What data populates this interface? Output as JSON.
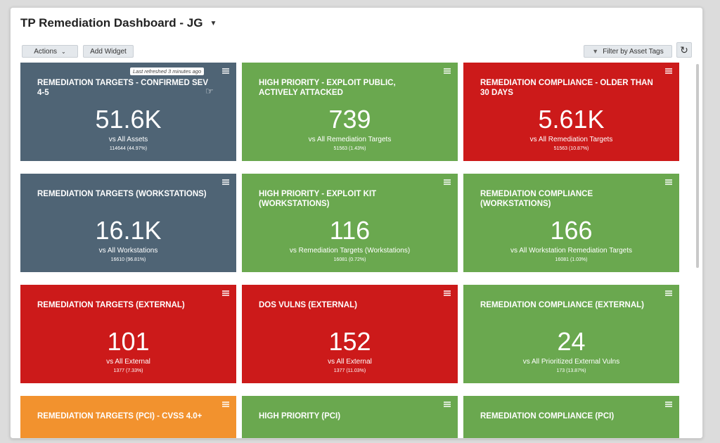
{
  "header": {
    "title": "TP Remediation Dashboard - JG",
    "actions_label": "Actions",
    "add_widget_label": "Add Widget",
    "filter_label": "Filter by Asset Tags",
    "refreshed_note": "Last refreshed 3 minutes ago"
  },
  "colors": {
    "slate": "#4f6475",
    "green": "#6aa84f",
    "red": "#cc1a1a",
    "orange": "#f2922e"
  },
  "tiles": [
    {
      "title": "REMEDIATION TARGETS - CONFIRMED SEV 4-5",
      "value": "51.6K",
      "vs": "vs  All Assets",
      "sub": "114644 (44.97%)",
      "color": "slate"
    },
    {
      "title": "HIGH PRIORITY - EXPLOIT PUBLIC, ACTIVELY ATTACKED",
      "value": "739",
      "vs": "vs  All Remediation Targets",
      "sub": "51563 (1.43%)",
      "color": "green"
    },
    {
      "title": "REMEDIATION COMPLIANCE - OLDER THAN 30 DAYS",
      "value": "5.61K",
      "vs": "vs  All Remediation Targets",
      "sub": "51563 (10.87%)",
      "color": "red"
    },
    {
      "title": "REMEDIATION TARGETS (WORKSTATIONS)",
      "value": "16.1K",
      "vs": "vs  All Workstations",
      "sub": "16610 (96.81%)",
      "color": "slate"
    },
    {
      "title": "HIGH PRIORITY - EXPLOIT KIT (WORKSTATIONS)",
      "value": "116",
      "vs": "vs  Remediation Targets (Workstations)",
      "sub": "16081 (0.72%)",
      "color": "green"
    },
    {
      "title": "REMEDIATION COMPLIANCE (WORKSTATIONS)",
      "value": "166",
      "vs": "vs  All Workstation Remediation Targets",
      "sub": "16081 (1.03%)",
      "color": "green"
    },
    {
      "title": "REMEDIATION TARGETS (EXTERNAL)",
      "value": "101",
      "vs": "vs  All External",
      "sub": "1377 (7.33%)",
      "color": "red"
    },
    {
      "title": "DOS VULNS (EXTERNAL)",
      "value": "152",
      "vs": "vs  All External",
      "sub": "1377 (11.03%)",
      "color": "red"
    },
    {
      "title": "REMEDIATION COMPLIANCE (EXTERNAL)",
      "value": "24",
      "vs": "vs  All Prioritized External Vulns",
      "sub": "173 (13.87%)",
      "color": "green"
    },
    {
      "title": "REMEDIATION TARGETS (PCI) - CVSS 4.0+",
      "value": "",
      "vs": "",
      "sub": "",
      "color": "orange"
    },
    {
      "title": "HIGH PRIORITY (PCI)",
      "value": "",
      "vs": "",
      "sub": "",
      "color": "green"
    },
    {
      "title": "REMEDIATION COMPLIANCE (PCI)",
      "value": "",
      "vs": "",
      "sub": "",
      "color": "green"
    }
  ]
}
